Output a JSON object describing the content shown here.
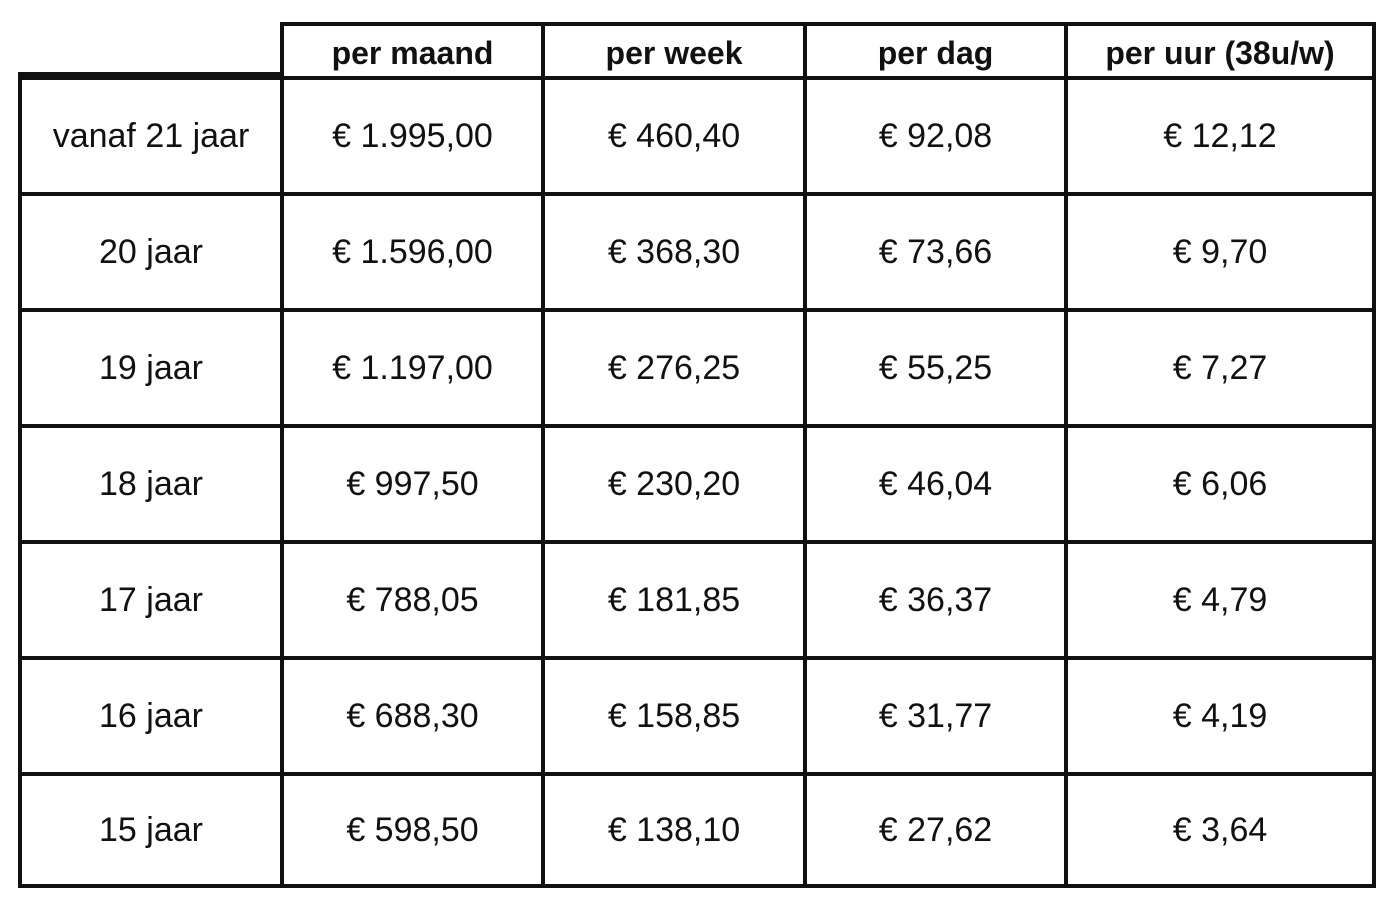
{
  "table": {
    "columns": [
      "",
      "per maand",
      "per week",
      "per dag",
      "per uur (38u/w)"
    ],
    "rows": [
      {
        "label": "vanaf 21 jaar",
        "values": [
          "€ 1.995,00",
          "€ 460,40",
          "€ 92,08",
          "€ 12,12"
        ]
      },
      {
        "label": "20 jaar",
        "values": [
          "€ 1.596,00",
          "€ 368,30",
          "€ 73,66",
          "€ 9,70"
        ]
      },
      {
        "label": "19 jaar",
        "values": [
          "€ 1.197,00",
          "€ 276,25",
          "€ 55,25",
          "€ 7,27"
        ]
      },
      {
        "label": "18 jaar",
        "values": [
          "€ 997,50",
          "€ 230,20",
          "€ 46,04",
          "€ 6,06"
        ]
      },
      {
        "label": "17 jaar",
        "values": [
          "€ 788,05",
          "€ 181,85",
          "€ 36,37",
          "€ 4,79"
        ]
      },
      {
        "label": "16 jaar",
        "values": [
          "€ 688,30",
          "€ 158,85",
          "€ 31,77",
          "€ 4,19"
        ]
      },
      {
        "label": "15 jaar",
        "values": [
          "€ 598,50",
          "€ 138,10",
          "€ 27,62",
          "€ 3,64"
        ]
      }
    ]
  }
}
